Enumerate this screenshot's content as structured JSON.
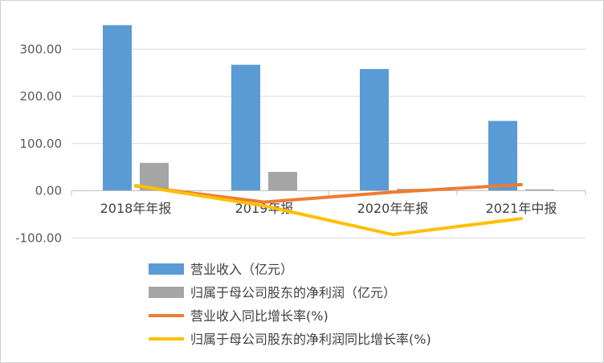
{
  "chart_data": {
    "type": "bar",
    "categories": [
      "2018年年报",
      "2019年报",
      "2020年年报",
      "2021年中报"
    ],
    "ylim": [
      -100,
      350
    ],
    "yticks": [
      300,
      200,
      100,
      0,
      -100
    ],
    "ytick_labels": [
      "300.00",
      "200.00",
      "100.00",
      "0.00",
      "-100.00"
    ],
    "grid": true,
    "legend_position": "bottom",
    "series": [
      {
        "name": "营业收入（亿元）",
        "kind": "bar",
        "color": "#5B9BD5",
        "values": [
          351,
          267,
          258,
          148
        ]
      },
      {
        "name": "归属于母公司股东的净利润（亿元）",
        "kind": "bar",
        "color": "#A5A5A5",
        "values": [
          59,
          40,
          4,
          3
        ]
      },
      {
        "name": "营业收入同比增长率(%)",
        "kind": "line",
        "color": "#ED7D31",
        "values": [
          10,
          -24,
          -3,
          13
        ]
      },
      {
        "name": "归属于母公司股东的净利润同比增长率(%)",
        "kind": "line",
        "color": "#FFC000",
        "values": [
          11,
          -32,
          -93,
          -59
        ]
      }
    ]
  }
}
